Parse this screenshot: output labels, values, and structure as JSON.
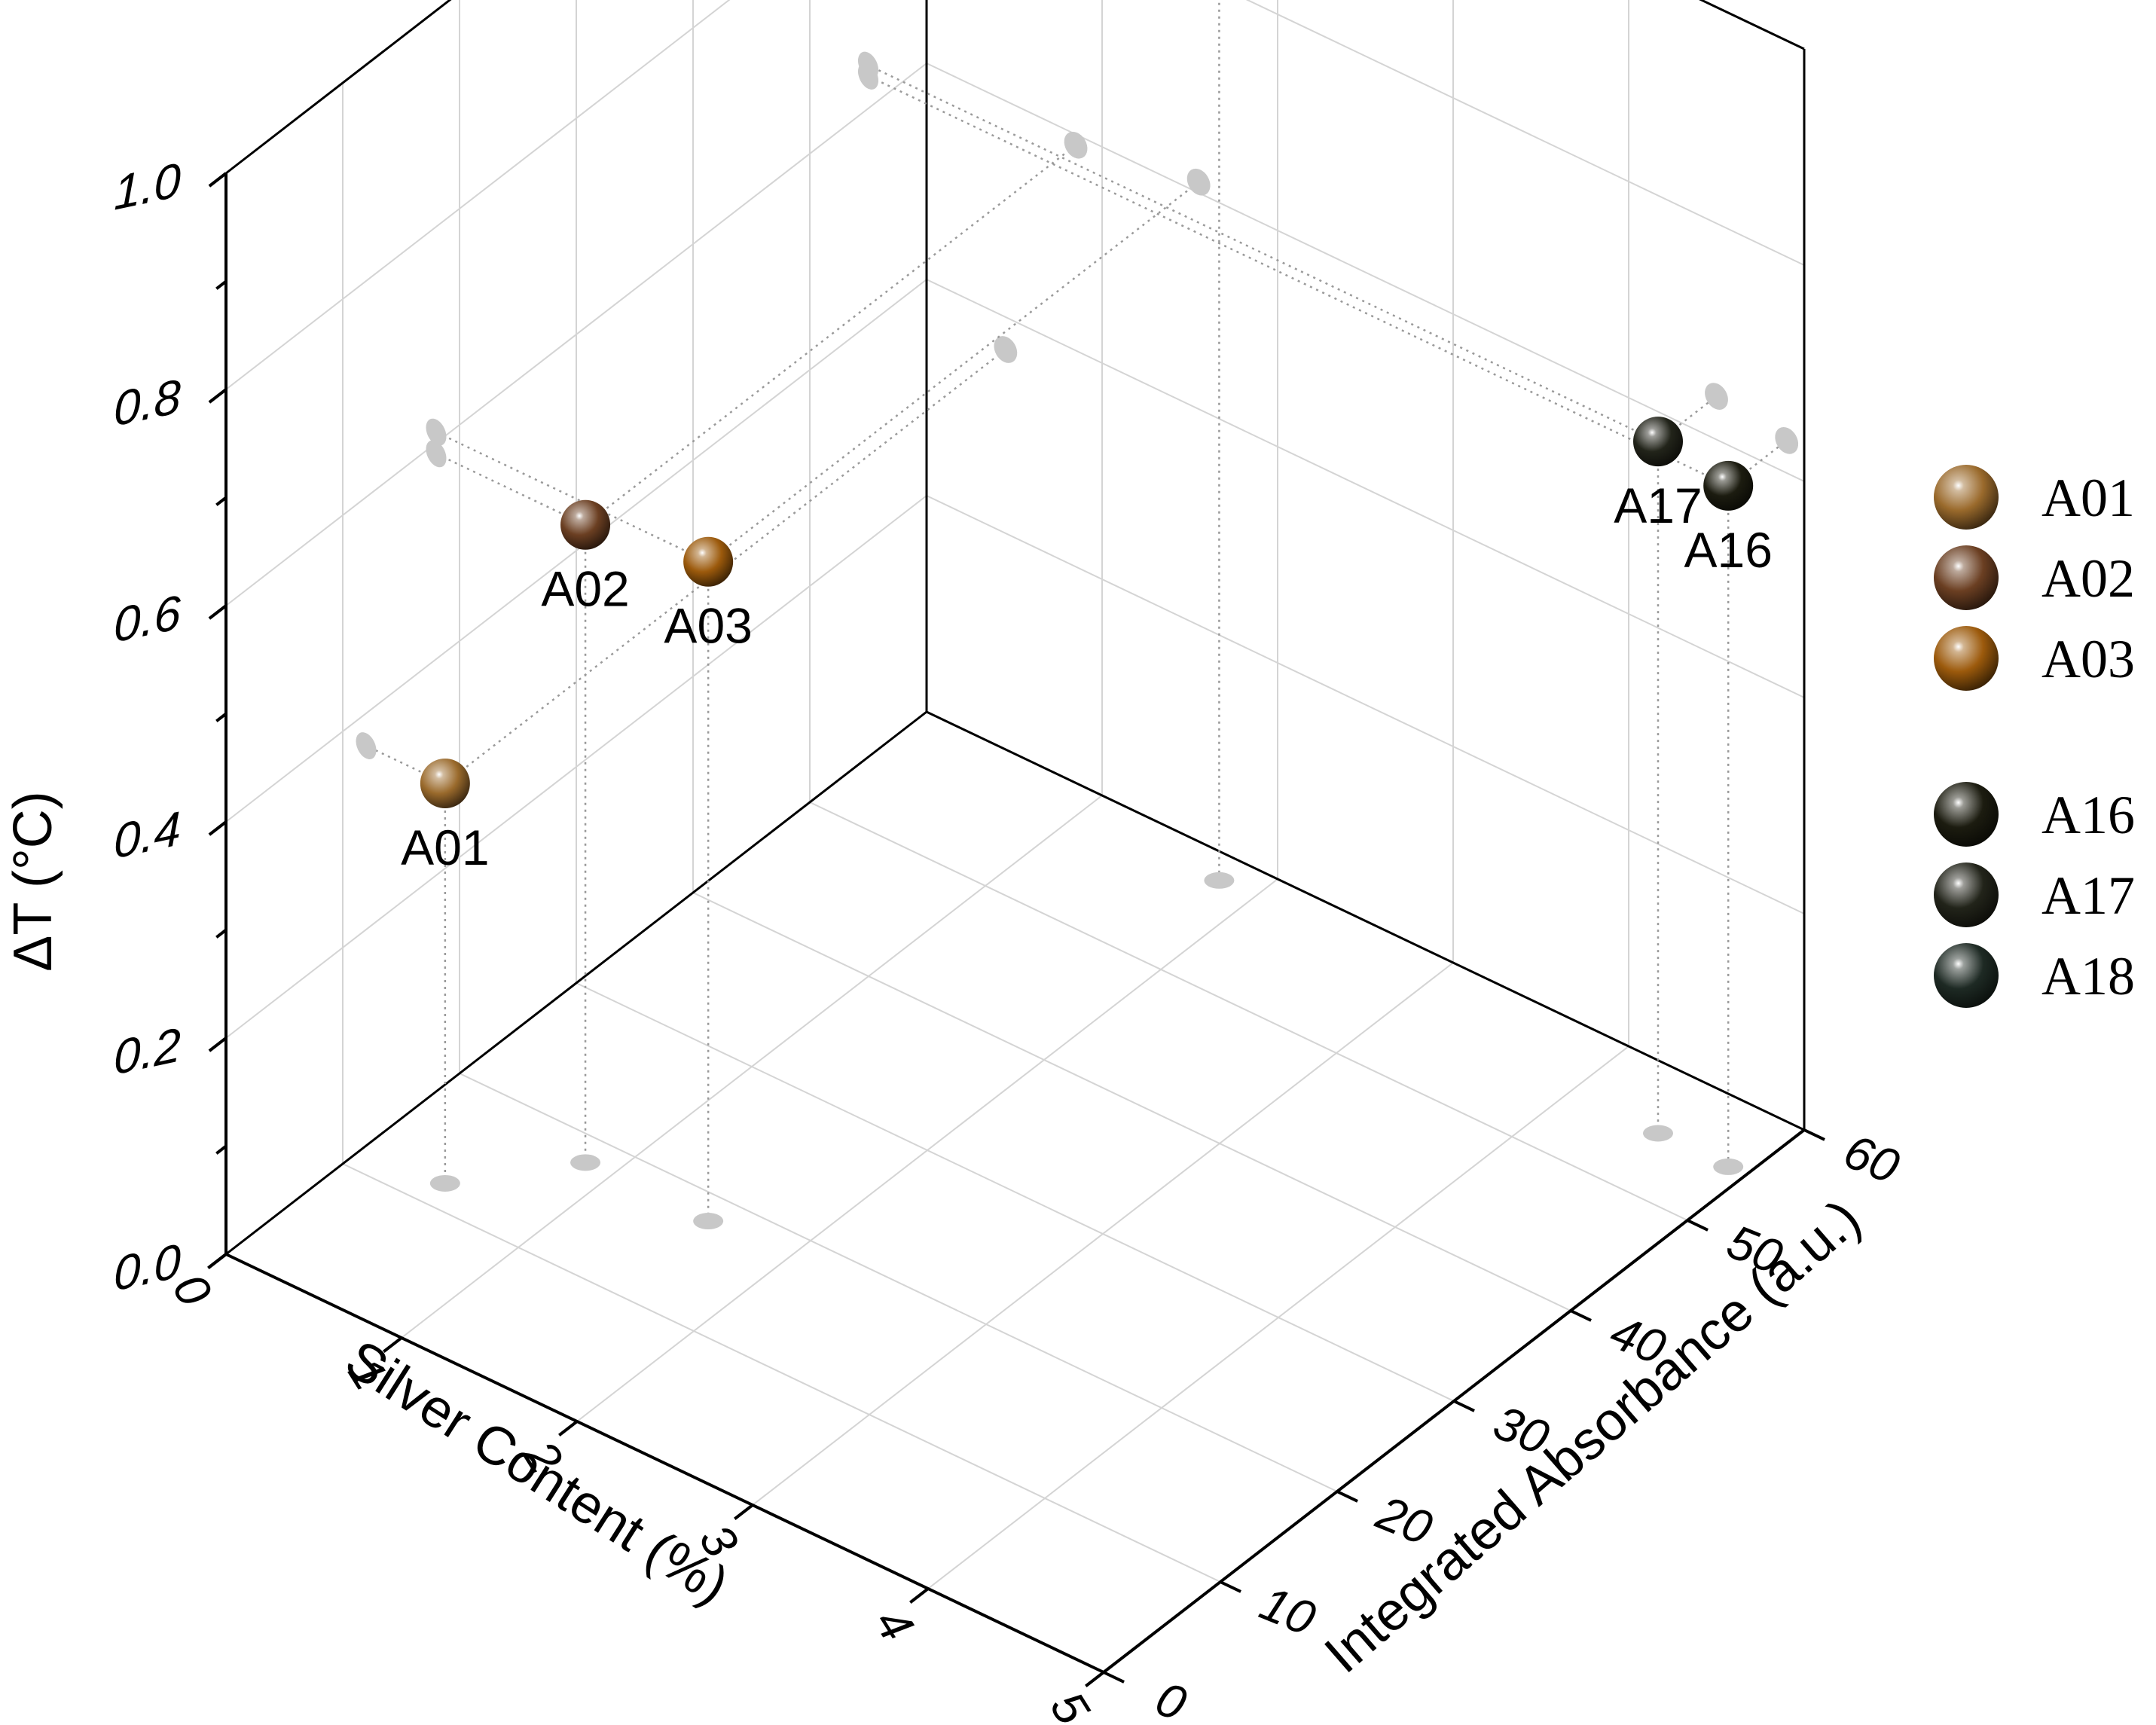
{
  "chart_data": {
    "type": "scatter3d",
    "x_axis": {
      "label": "Silver Content (%)",
      "range": [
        0,
        5
      ],
      "ticks": [
        "0",
        "1",
        "2",
        "3",
        "4",
        "5"
      ]
    },
    "y_axis": {
      "label": "Integrated Absorbance (a.u.)",
      "range": [
        0,
        60
      ],
      "ticks": [
        "0",
        "10",
        "20",
        "30",
        "40",
        "50",
        "60"
      ]
    },
    "z_axis": {
      "label": "ΔT (°C)",
      "range": [
        0,
        1.0
      ],
      "ticks": [
        "0.0",
        "0.2",
        "0.4",
        "0.6",
        "0.8",
        "1.0"
      ]
    },
    "grid": true,
    "legend_position": "right",
    "points": [
      {
        "name": "A01",
        "x": 0.45,
        "y": 12,
        "z": 0.37,
        "color": "#9a6a2c"
      },
      {
        "name": "A02",
        "x": 0.85,
        "y": 18,
        "z": 0.59,
        "color": "#6b3f22"
      },
      {
        "name": "A03",
        "x": 1.55,
        "y": 18,
        "z": 0.61,
        "color": "#9c5a0c"
      },
      {
        "name": "A16",
        "x": 4.9,
        "y": 55,
        "z": 0.63,
        "color": "#1c1c10"
      },
      {
        "name": "A17",
        "x": 4.5,
        "y": 55,
        "z": 0.64,
        "color": "#22241a"
      },
      {
        "name": "A18",
        "x": 1.8,
        "y": 58,
        "z": 1.0,
        "color": "#1e2a24"
      }
    ],
    "legend": [
      {
        "name": "A01",
        "color": "#9a6a2c"
      },
      {
        "name": "A02",
        "color": "#6b3f22"
      },
      {
        "name": "A03",
        "color": "#9c5a0c"
      },
      {
        "name": "A16",
        "color": "#1c1c10"
      },
      {
        "name": "A17",
        "color": "#22241a"
      },
      {
        "name": "A18",
        "color": "#1e2a24"
      }
    ]
  }
}
